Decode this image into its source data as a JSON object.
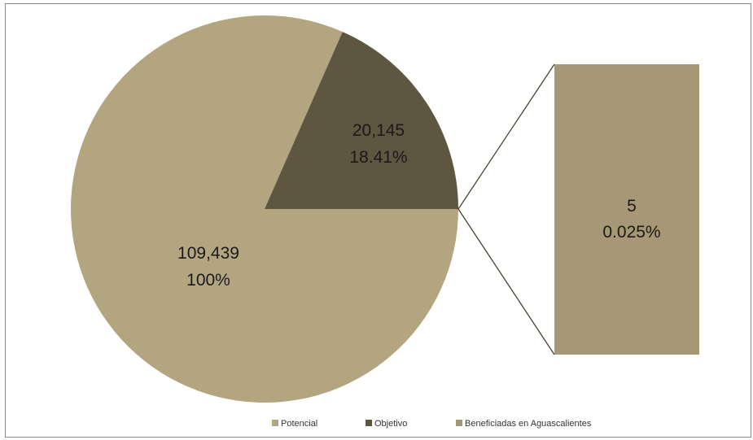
{
  "chart_data": {
    "type": "pie",
    "subtype": "bar-of-pie",
    "title": "",
    "slices": [
      {
        "name": "Potencial",
        "value": 109439,
        "label_value": "109,439",
        "label_pct": "100%",
        "color": "#b3a580"
      },
      {
        "name": "Objetivo",
        "value": 20145,
        "label_value": "20,145",
        "label_pct": "18.41%",
        "color": "#5e5640"
      }
    ],
    "secondary_bar": {
      "name": "Beneficiadas en Aguascalientes",
      "value": 5,
      "label_value": "5",
      "label_pct": "0.025%",
      "color": "#a69775"
    },
    "legend": {
      "position": "bottom",
      "items": [
        {
          "label": "Potencial",
          "color": "#b3a580"
        },
        {
          "label": "Objetivo",
          "color": "#5e5640"
        },
        {
          "label": "Beneficiadas en Aguascalientes",
          "color": "#a69775"
        }
      ]
    }
  }
}
